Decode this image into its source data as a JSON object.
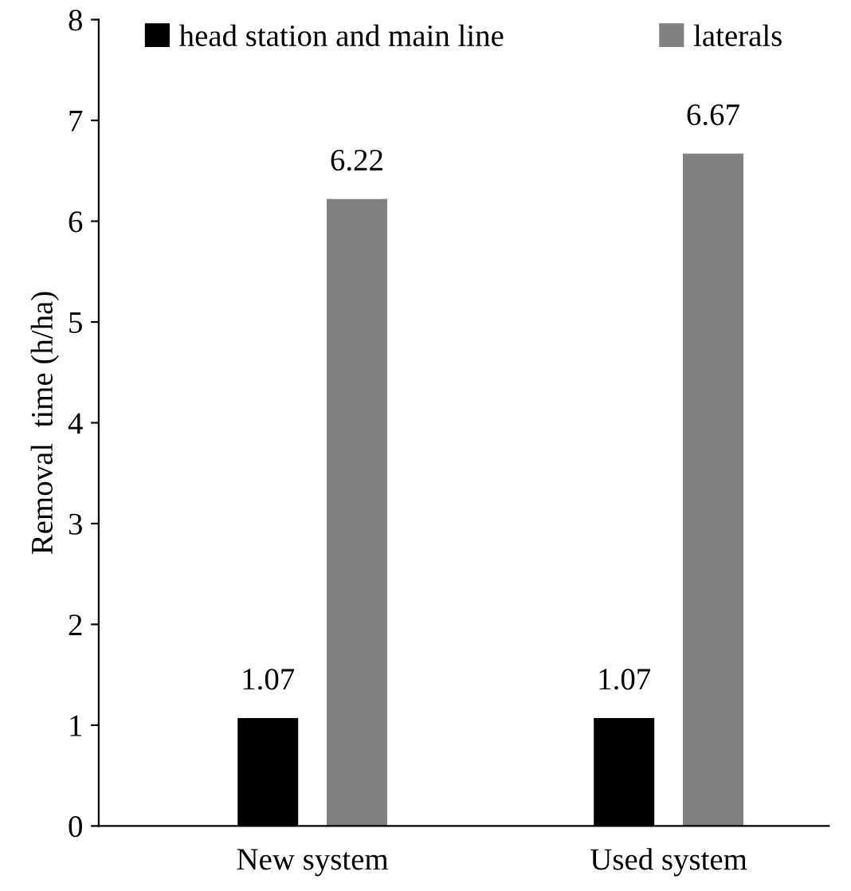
{
  "chart_data": {
    "type": "bar",
    "ylabel": "Removal  time (h/ha)",
    "categories": [
      "New system",
      "Used system"
    ],
    "series": [
      {
        "name": "head station and main line",
        "color": "#000000",
        "values": [
          1.07,
          1.07
        ]
      },
      {
        "name": "laterals",
        "color": "#808080",
        "values": [
          6.22,
          6.67
        ]
      }
    ],
    "ylim": [
      0,
      8
    ],
    "yticks": [
      0,
      1,
      2,
      3,
      4,
      5,
      6,
      7,
      8
    ],
    "grid": false,
    "legend": "top",
    "data_labels": true
  }
}
